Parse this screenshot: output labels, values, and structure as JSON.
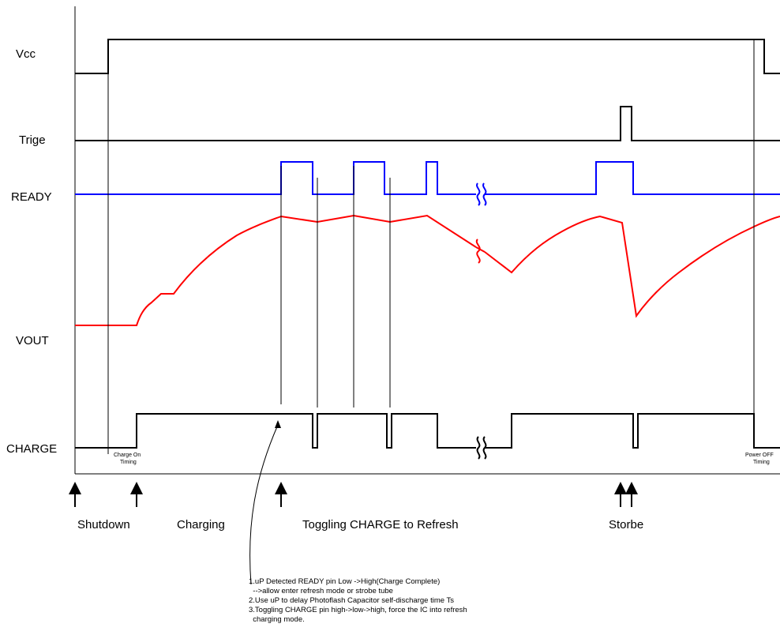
{
  "signals": {
    "vcc": "Vcc",
    "trige": "Trige",
    "ready": "READY",
    "vout": "VOUT",
    "charge": "CHARGE"
  },
  "timing": {
    "charge_on": [
      "Charge On",
      "Timing"
    ],
    "power_off": [
      "Power OFF",
      "Timing"
    ]
  },
  "phases": {
    "shutdown": "Shutdown",
    "charging": "Charging",
    "toggling": "Toggling CHARGE to Refresh",
    "strobe": "Storbe"
  },
  "notes": [
    "1.uP Detected READY pin Low ->High(Charge Complete)",
    "  -->allow enter refresh mode or strobe tube",
    "2.Use uP to delay Photoflash Capacitor self-discharge time Ts",
    "3.Toggling CHARGE pin high->low->high, force the IC into refresh",
    "  charging mode."
  ],
  "colors": {
    "ready_trace": "#0000ff",
    "vout_trace": "#ff0000",
    "digital_trace": "#000000"
  }
}
